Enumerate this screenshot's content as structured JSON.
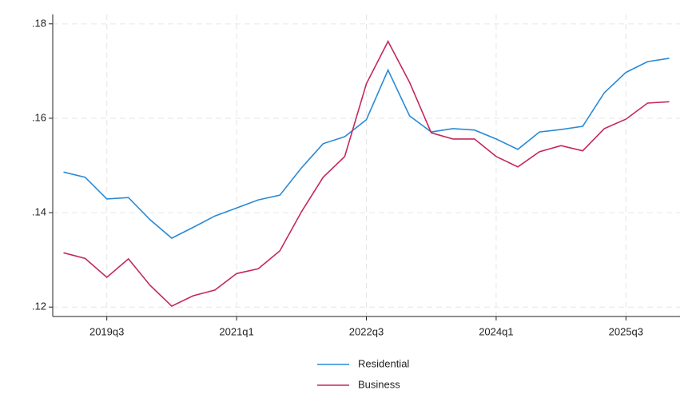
{
  "chart_data": {
    "type": "line",
    "categories": [
      null,
      null,
      "2019q3",
      null,
      null,
      null,
      null,
      null,
      "2021q1",
      null,
      null,
      null,
      null,
      null,
      "2022q3",
      null,
      null,
      null,
      null,
      null,
      "2024q1",
      null,
      null,
      null,
      null,
      null,
      "2025q3",
      null,
      null
    ],
    "series": [
      {
        "name": "Residential",
        "color": "#2a8ad6",
        "values": [
          0.1486,
          0.1475,
          0.1429,
          0.1432,
          0.1385,
          0.1346,
          0.1369,
          0.1393,
          0.141,
          0.1427,
          0.1437,
          0.1495,
          0.1546,
          0.1561,
          0.1597,
          0.1702,
          0.1605,
          0.1571,
          0.1578,
          0.1575,
          0.1556,
          0.1534,
          0.1571,
          0.1576,
          0.1583,
          0.1654,
          0.1697,
          0.172,
          0.1727
        ]
      },
      {
        "name": "Business",
        "color": "#c4285e",
        "values": [
          0.1315,
          0.1303,
          0.1263,
          0.1302,
          0.1246,
          0.1202,
          0.1224,
          0.1236,
          0.1271,
          0.1281,
          0.1319,
          0.1402,
          0.1475,
          0.1519,
          0.1673,
          0.1763,
          0.1676,
          0.1569,
          0.1556,
          0.1556,
          0.1519,
          0.1497,
          0.1529,
          0.1542,
          0.1531,
          0.1578,
          0.1598,
          0.1632,
          0.1635
        ]
      }
    ],
    "ylim": [
      0.118,
      0.182
    ],
    "yticks": [
      {
        "value": 0.12,
        "label": ".12"
      },
      {
        "value": 0.14,
        "label": ".14"
      },
      {
        "value": 0.16,
        "label": ".16"
      },
      {
        "value": 0.18,
        "label": ".18"
      }
    ],
    "grid": true,
    "legend": "bottom"
  }
}
